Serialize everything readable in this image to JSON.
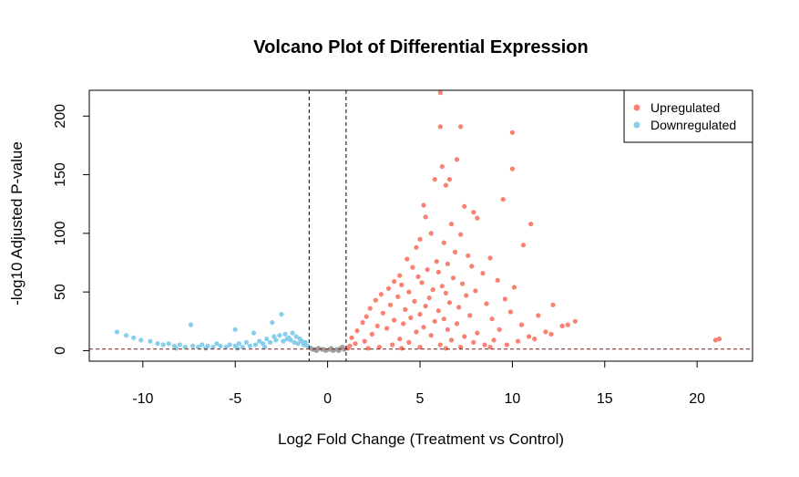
{
  "chart_data": {
    "type": "scatter",
    "title": "Volcano Plot of Differential Expression",
    "xlabel": "Log2 Fold Change (Treatment vs Control)",
    "ylabel": "-log10 Adjusted P-value",
    "xlim": [
      -12.9,
      23.0
    ],
    "ylim": [
      -9,
      222
    ],
    "x_ticks": [
      -10,
      -5,
      0,
      5,
      10,
      15,
      20
    ],
    "y_ticks": [
      0,
      50,
      100,
      150,
      200
    ],
    "x_tick_labels": [
      "-10",
      "-5",
      "0",
      "5",
      "10",
      "15",
      "20"
    ],
    "y_tick_labels": [
      "0",
      "50",
      "100",
      "150",
      "200"
    ],
    "thresholds": {
      "log2fc": [
        -1,
        1
      ],
      "neg_log10_padj": 1.3
    },
    "grid": false,
    "legend": {
      "position": "top-right"
    },
    "series": [
      {
        "name": "Upregulated",
        "color": "#FA8072",
        "points": [
          [
            6.1,
            220
          ],
          [
            6.1,
            191
          ],
          [
            7.2,
            191
          ],
          [
            10.0,
            186
          ],
          [
            7.0,
            163
          ],
          [
            6.2,
            157
          ],
          [
            10.0,
            155
          ],
          [
            5.8,
            146
          ],
          [
            6.6,
            146
          ],
          [
            6.4,
            141
          ],
          [
            9.5,
            129
          ],
          [
            7.4,
            123
          ],
          [
            7.9,
            118
          ],
          [
            5.2,
            124
          ],
          [
            5.3,
            114
          ],
          [
            8.1,
            113
          ],
          [
            11.0,
            108
          ],
          [
            6.7,
            108
          ],
          [
            5.6,
            100
          ],
          [
            7.2,
            99
          ],
          [
            6.3,
            92
          ],
          [
            10.6,
            90
          ],
          [
            5.0,
            95
          ],
          [
            4.8,
            88
          ],
          [
            6.9,
            84
          ],
          [
            7.6,
            81
          ],
          [
            8.8,
            79
          ],
          [
            4.3,
            78
          ],
          [
            5.9,
            76
          ],
          [
            6.5,
            74
          ],
          [
            7.8,
            72
          ],
          [
            4.6,
            71
          ],
          [
            5.4,
            69
          ],
          [
            6.0,
            67
          ],
          [
            8.4,
            66
          ],
          [
            3.9,
            64
          ],
          [
            4.9,
            63
          ],
          [
            6.8,
            62
          ],
          [
            9.2,
            60
          ],
          [
            3.6,
            59
          ],
          [
            5.1,
            58
          ],
          [
            7.3,
            57
          ],
          [
            4.0,
            56
          ],
          [
            6.2,
            55
          ],
          [
            10.1,
            54
          ],
          [
            3.3,
            53
          ],
          [
            5.7,
            52
          ],
          [
            8.0,
            51
          ],
          [
            4.4,
            50
          ],
          [
            6.4,
            49
          ],
          [
            2.9,
            48
          ],
          [
            7.5,
            47
          ],
          [
            3.8,
            46
          ],
          [
            5.5,
            45
          ],
          [
            9.6,
            44
          ],
          [
            2.6,
            43
          ],
          [
            4.7,
            42
          ],
          [
            6.6,
            41
          ],
          [
            8.6,
            40
          ],
          [
            3.4,
            39
          ],
          [
            5.3,
            38
          ],
          [
            12.2,
            39
          ],
          [
            7.1,
            37
          ],
          [
            2.3,
            36
          ],
          [
            4.2,
            35
          ],
          [
            6.0,
            34
          ],
          [
            9.9,
            33
          ],
          [
            3.0,
            32
          ],
          [
            5.0,
            31
          ],
          [
            7.7,
            30
          ],
          [
            11.4,
            30
          ],
          [
            2.1,
            29
          ],
          [
            4.5,
            28
          ],
          [
            6.3,
            27
          ],
          [
            8.9,
            27
          ],
          [
            3.6,
            26
          ],
          [
            5.8,
            25
          ],
          [
            13.4,
            25
          ],
          [
            1.9,
            24
          ],
          [
            4.1,
            23
          ],
          [
            7.0,
            23
          ],
          [
            10.5,
            22
          ],
          [
            2.7,
            21
          ],
          [
            5.2,
            20
          ],
          [
            12.7,
            21
          ],
          [
            3.2,
            19
          ],
          [
            6.5,
            18
          ],
          [
            9.3,
            18
          ],
          [
            1.6,
            17
          ],
          [
            4.8,
            16
          ],
          [
            8.1,
            15
          ],
          [
            11.8,
            16
          ],
          [
            2.4,
            14
          ],
          [
            5.6,
            13
          ],
          [
            7.4,
            12
          ],
          [
            10.9,
            12
          ],
          [
            1.3,
            11
          ],
          [
            3.9,
            10
          ],
          [
            6.7,
            9
          ],
          [
            9.0,
            9
          ],
          [
            12.1,
            14
          ],
          [
            2.0,
            8
          ],
          [
            4.4,
            7
          ],
          [
            7.9,
            7
          ],
          [
            10.3,
            8
          ],
          [
            1.5,
            6
          ],
          [
            3.5,
            5
          ],
          [
            6.1,
            5
          ],
          [
            8.5,
            5
          ],
          [
            11.2,
            10
          ],
          [
            13.0,
            22
          ],
          [
            1.2,
            4
          ],
          [
            2.8,
            3
          ],
          [
            5.0,
            3
          ],
          [
            7.2,
            3
          ],
          [
            9.7,
            5
          ],
          [
            1.1,
            2
          ],
          [
            2.2,
            2
          ],
          [
            4.0,
            2
          ],
          [
            6.4,
            2
          ],
          [
            8.8,
            3
          ],
          [
            21.0,
            9
          ],
          [
            21.2,
            10
          ]
        ]
      },
      {
        "name": "Downregulated",
        "color": "#87CEEB",
        "points": [
          [
            -11.4,
            16
          ],
          [
            -10.9,
            13
          ],
          [
            -10.5,
            11
          ],
          [
            -10.1,
            9
          ],
          [
            -9.6,
            8
          ],
          [
            -9.2,
            6
          ],
          [
            -8.9,
            5
          ],
          [
            -8.6,
            6
          ],
          [
            -8.3,
            4
          ],
          [
            -8.0,
            5
          ],
          [
            -7.7,
            3
          ],
          [
            -7.4,
            22
          ],
          [
            -7.3,
            4
          ],
          [
            -7.0,
            3
          ],
          [
            -6.8,
            5
          ],
          [
            -6.5,
            4
          ],
          [
            -6.2,
            3
          ],
          [
            -6.0,
            6
          ],
          [
            -5.8,
            4
          ],
          [
            -5.5,
            3
          ],
          [
            -5.3,
            5
          ],
          [
            -5.0,
            18
          ],
          [
            -5.0,
            4
          ],
          [
            -4.8,
            6
          ],
          [
            -4.6,
            3
          ],
          [
            -4.4,
            7
          ],
          [
            -4.2,
            4
          ],
          [
            -4.0,
            15
          ],
          [
            -3.9,
            5
          ],
          [
            -3.7,
            8
          ],
          [
            -3.5,
            6
          ],
          [
            -3.3,
            10
          ],
          [
            -3.1,
            7
          ],
          [
            -3.0,
            24
          ],
          [
            -2.9,
            12
          ],
          [
            -2.8,
            9
          ],
          [
            -2.6,
            13
          ],
          [
            -2.5,
            31
          ],
          [
            -2.4,
            8
          ],
          [
            -2.3,
            14
          ],
          [
            -2.2,
            10
          ],
          [
            -2.1,
            11
          ],
          [
            -2.0,
            9
          ],
          [
            -1.9,
            15
          ],
          [
            -1.8,
            7
          ],
          [
            -1.7,
            12
          ],
          [
            -1.6,
            6
          ],
          [
            -1.5,
            10
          ],
          [
            -1.4,
            8
          ],
          [
            -1.3,
            5
          ],
          [
            -1.2,
            7
          ],
          [
            -1.1,
            4
          ],
          [
            -8.2,
            2
          ],
          [
            -6.6,
            2
          ],
          [
            -4.9,
            2
          ],
          [
            -3.4,
            3
          ]
        ]
      },
      {
        "name": "",
        "color": "#9E9E9E",
        "points": [
          [
            -0.9,
            2
          ],
          [
            -0.7,
            1
          ],
          [
            -0.5,
            2
          ],
          [
            -0.3,
            1
          ],
          [
            -0.1,
            0
          ],
          [
            0.1,
            1
          ],
          [
            0.3,
            0
          ],
          [
            0.5,
            1
          ],
          [
            0.7,
            2
          ],
          [
            0.9,
            1
          ],
          [
            -0.6,
            0
          ],
          [
            0.2,
            2
          ],
          [
            -0.2,
            1
          ],
          [
            0.6,
            0
          ],
          [
            0.8,
            3
          ],
          [
            -0.8,
            1
          ]
        ]
      }
    ]
  }
}
